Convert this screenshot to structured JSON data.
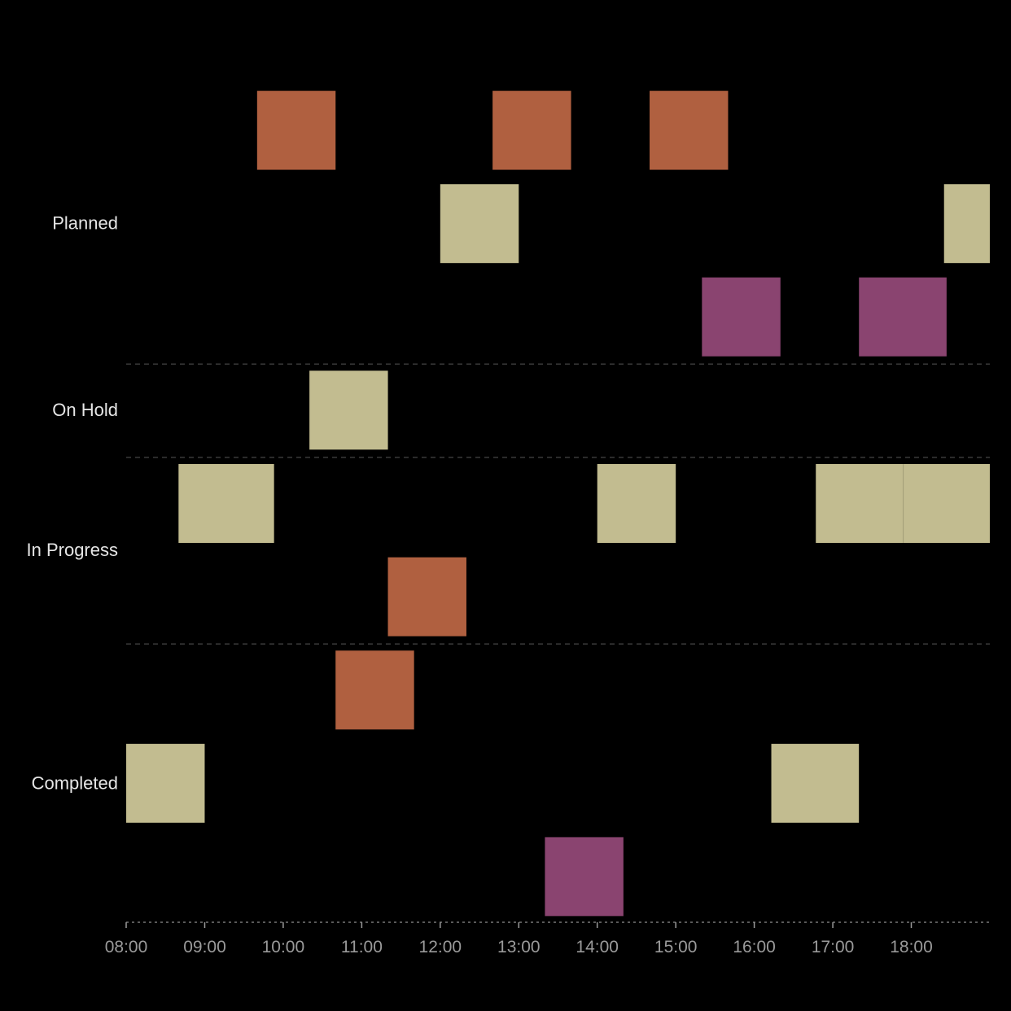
{
  "colors": {
    "background": "#000000",
    "orange": "#b06040",
    "khaki": "#c2bc90",
    "purple": "#8a4470",
    "label_text": "#e6e6e6",
    "tick_text": "#9a9a9a",
    "separator": "#3a3a3a"
  },
  "chart_data": {
    "type": "timeline",
    "title": "",
    "xlabel": "",
    "ylabel": "",
    "x_axis": {
      "domain_hours": [
        8,
        19
      ],
      "tick_labels": [
        "08:00",
        "09:00",
        "10:00",
        "11:00",
        "12:00",
        "13:00",
        "14:00",
        "15:00",
        "16:00",
        "17:00",
        "18:00"
      ]
    },
    "grid": false,
    "categories": [
      {
        "name": "Planned",
        "lanes": [
          [
            {
              "start": "09:40",
              "end": "10:40",
              "color": "orange"
            },
            {
              "start": "12:40",
              "end": "13:40",
              "color": "orange"
            },
            {
              "start": "14:40",
              "end": "15:40",
              "color": "orange"
            }
          ],
          [
            {
              "start": "12:00",
              "end": "13:00",
              "color": "khaki"
            },
            {
              "start": "18:25",
              "end": "19:00",
              "color": "khaki"
            }
          ],
          [
            {
              "start": "15:20",
              "end": "16:20",
              "color": "purple"
            },
            {
              "start": "17:20",
              "end": "18:27",
              "color": "purple"
            }
          ]
        ]
      },
      {
        "name": "On Hold",
        "lanes": [
          [
            {
              "start": "10:20",
              "end": "11:20",
              "color": "khaki"
            }
          ]
        ]
      },
      {
        "name": "In Progress",
        "lanes": [
          [
            {
              "start": "08:40",
              "end": "09:53",
              "color": "khaki"
            },
            {
              "start": "14:00",
              "end": "15:00",
              "color": "khaki"
            },
            {
              "start": "16:47",
              "end": "17:54",
              "color": "khaki"
            },
            {
              "start": "17:54",
              "end": "19:00",
              "color": "khaki"
            }
          ],
          [
            {
              "start": "11:20",
              "end": "12:20",
              "color": "orange"
            }
          ]
        ]
      },
      {
        "name": "Completed",
        "lanes": [
          [
            {
              "start": "10:40",
              "end": "11:40",
              "color": "orange"
            }
          ],
          [
            {
              "start": "08:00",
              "end": "09:00",
              "color": "khaki"
            },
            {
              "start": "16:13",
              "end": "17:20",
              "color": "khaki"
            }
          ],
          [
            {
              "start": "13:20",
              "end": "14:20",
              "color": "purple"
            }
          ]
        ]
      }
    ]
  }
}
